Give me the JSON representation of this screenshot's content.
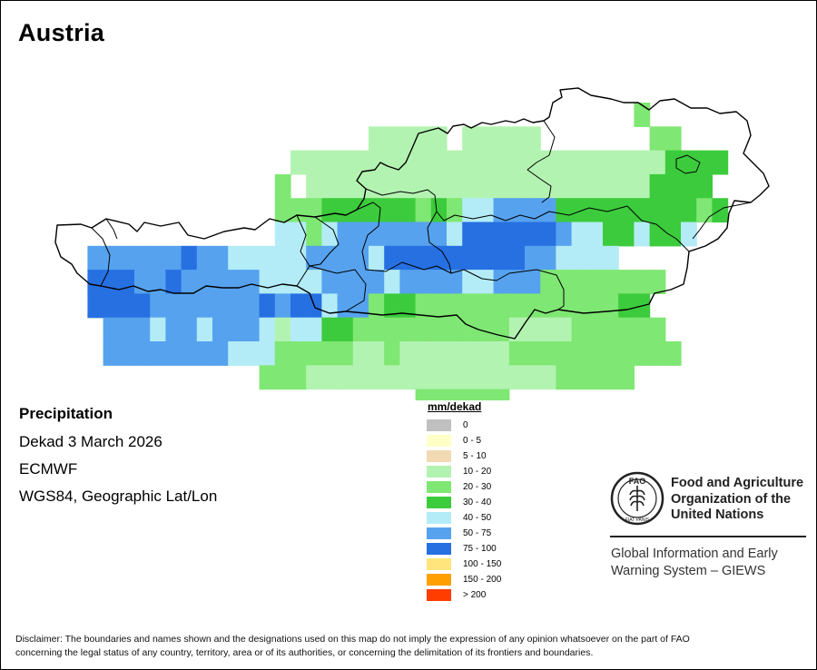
{
  "title": "Austria",
  "info": {
    "variable": "Precipitation",
    "period": "Dekad 3 March 2026",
    "model": "ECMWF",
    "projection": "WGS84, Geographic Lat/Lon"
  },
  "legend": {
    "title": "mm/dekad",
    "items": [
      {
        "label": "0",
        "color": "#c0c0c0"
      },
      {
        "label": "0 - 5",
        "color": "#ffffc8"
      },
      {
        "label": "5 - 10",
        "color": "#f1d9b4"
      },
      {
        "label": "10 - 20",
        "color": "#b3f3b1"
      },
      {
        "label": "20 - 30",
        "color": "#7fe773"
      },
      {
        "label": "30 - 40",
        "color": "#3ccb3c"
      },
      {
        "label": "40 - 50",
        "color": "#b3ecf6"
      },
      {
        "label": "50 - 75",
        "color": "#56a2ee"
      },
      {
        "label": "75 - 100",
        "color": "#2670e2"
      },
      {
        "label": "100 - 150",
        "color": "#ffe57c"
      },
      {
        "label": "150 - 200",
        "color": "#ff9f00"
      },
      {
        "label": "> 200",
        "color": "#ff3d00"
      }
    ]
  },
  "fao": {
    "name_line1": "Food and Agriculture",
    "name_line2": "Organization of the",
    "name_line3": "United Nations",
    "giews_line1": "Global Information and Early",
    "giews_line2": "Warning System – GIEWS",
    "logo_top": "FAO",
    "logo_bottom": "FIAT PANIS"
  },
  "disclaimer_line1": "Disclaimer: The boundaries and names shown and the designations used on this map do not imply the expression of any opinion whatsoever on the part of FAO",
  "disclaimer_line2": "concerning the legal status of any country, territory, area or of its authorities, or concerning the delimitation of its frontiers and boundaries.",
  "grid": {
    "class_codes": "a=10-20, b=20-30, c=30-40, d=40-50, e=50-75, f=75-100",
    "rows": [
      ".....................................b..",
      "....................aaaaa.aaaaa.......bb.",
      "...............aaaaaaaaaaaaaaaaaaaaaaaacccc.",
      "..............b.aaaaaaaaaaaaaaaaaaaaaacccc.",
      "..............bbbccccccbcbddeeeecccccccccbc",
      "..............ddbdeeeeeeedffffffeddccdccd.",
      "..eeeeeefeedddddeeeedfffffffffeedddd.......",
      "..fffeefeeeeeddddeeeedeeeeddeeebbbbbbbb.....",
      "..ffffeeeeeeefeffdeebccbbbbbbbbbbbbbcc....",
      "...eeedeedeeedaddccbbbbbbbbbbaaaabbbbbb...",
      "...eeeeeeeedddbbbbbaabaaaaaaabbbbbbbbbbb...",
      ".............bbbaaaaaaaaaaaaaaaabbbbb.....",
      ".......................bbbbbb......."
    ]
  }
}
